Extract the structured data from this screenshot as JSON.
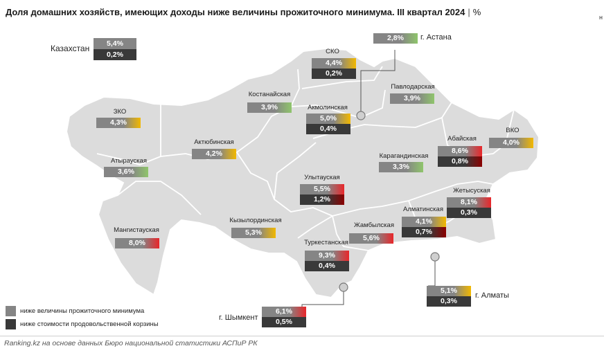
{
  "title": "Доля домашних хозяйств, имеющих доходы ниже величины прожиточного минимума. III квартал 2024",
  "title_sep": "|",
  "title_unit": "%",
  "corner_mark": "н",
  "colors": {
    "map_fill": "#dcdcdc",
    "border": "#ffffff",
    "primary_box": "#858585",
    "secondary_box": "#393939",
    "low": "#8fc56b",
    "mid": "#f2b800",
    "high": "#e8262a"
  },
  "kazakhstan": {
    "name": "Казахстан",
    "v1": "5,4%",
    "v2": "0,2%"
  },
  "regions": [
    {
      "name": "СКО",
      "v1": "4,4%",
      "v2": "0,2%",
      "level": "mid"
    },
    {
      "name": "Павлодарская",
      "v1": "3,9%",
      "level": "low"
    },
    {
      "name": "Костанайская",
      "v1": "3,9%",
      "level": "low"
    },
    {
      "name": "Акмолинская",
      "v1": "5,0%",
      "v2": "0,4%",
      "level": "mid"
    },
    {
      "name": "ЗКО",
      "v1": "4,3%",
      "level": "mid"
    },
    {
      "name": "Актюбинская",
      "v1": "4,2%",
      "level": "mid"
    },
    {
      "name": "Атырауская",
      "v1": "3,6%",
      "level": "low"
    },
    {
      "name": "Абайская",
      "v1": "8,6%",
      "v2": "0,8%",
      "level": "high"
    },
    {
      "name": "ВКО",
      "v1": "4,0%",
      "level": "mid"
    },
    {
      "name": "Карагандинская",
      "v1": "3,3%",
      "level": "low"
    },
    {
      "name": "Улытауская",
      "v1": "5,5%",
      "v2": "1,2%",
      "level": "high"
    },
    {
      "name": "Жетысуская",
      "v1": "8,1%",
      "v2": "0,3%",
      "level": "high"
    },
    {
      "name": "Алматинская",
      "v1": "4,1%",
      "v2": "0,7%",
      "level": "high"
    },
    {
      "name": "Мангистауская",
      "v1": "8,0%",
      "level": "high"
    },
    {
      "name": "Кызылординская",
      "v1": "5,3%",
      "level": "mid"
    },
    {
      "name": "Жамбылская",
      "v1": "5,6%",
      "level": "high"
    },
    {
      "name": "Туркестанская",
      "v1": "9,3%",
      "v2": "0,4%",
      "level": "high"
    }
  ],
  "cities": [
    {
      "name": "г. Астана",
      "v1": "2,8%",
      "level": "low"
    },
    {
      "name": "г. Алматы",
      "v1": "5,1%",
      "v2": "0,3%",
      "level": "mid"
    },
    {
      "name": "г. Шымкент",
      "v1": "6,1%",
      "v2": "0,5%",
      "level": "high"
    }
  ],
  "legend": [
    {
      "label": "ниже величины прожиточного минимума",
      "color": "#858585"
    },
    {
      "label": "ниже стоимости продовольственной корзины",
      "color": "#393939"
    }
  ],
  "source": "Ranking.kz на основе данных Бюро национальной статистики АСПиР РК"
}
